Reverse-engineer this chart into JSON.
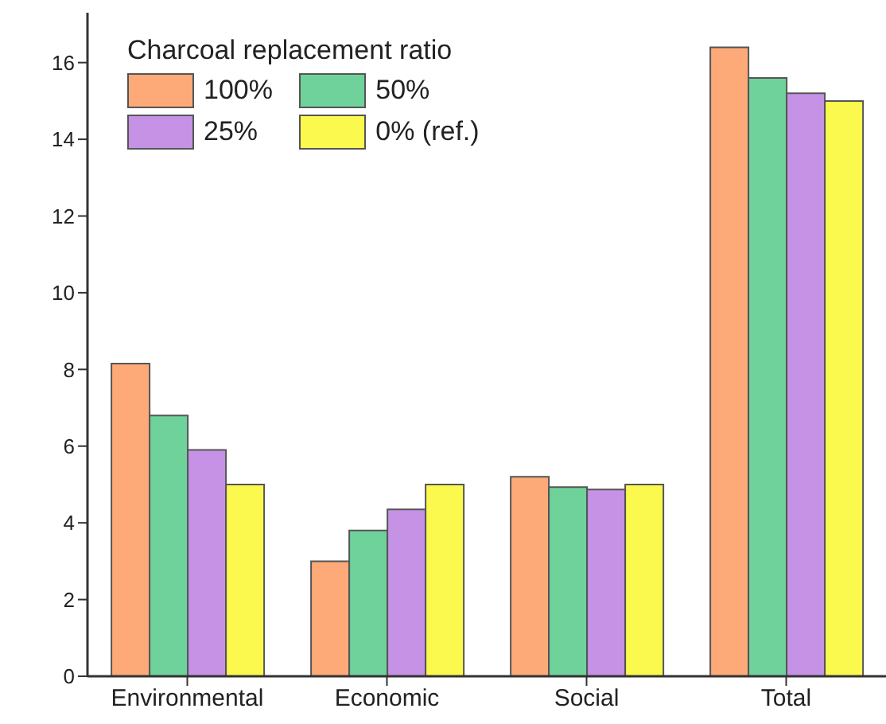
{
  "chart_data": {
    "type": "bar",
    "categories": [
      "Environmental",
      "Economic",
      "Social",
      "Total"
    ],
    "series": [
      {
        "name": "100%",
        "color": "#fdaa78",
        "values": [
          8.15,
          3.0,
          5.2,
          16.4
        ]
      },
      {
        "name": "50%",
        "color": "#6fd29a",
        "values": [
          6.8,
          3.8,
          4.93,
          15.6
        ]
      },
      {
        "name": "25%",
        "color": "#c592e6",
        "values": [
          5.9,
          4.35,
          4.87,
          15.2
        ]
      },
      {
        "name": "0% (ref.)",
        "color": "#fbf94d",
        "values": [
          5.0,
          5.0,
          5.0,
          15.0
        ]
      }
    ],
    "legend_title": "Charcoal replacement ratio",
    "legend": "top left",
    "ylim": [
      0,
      17.3
    ],
    "yticks": [
      0,
      2,
      4,
      6,
      8,
      10,
      12,
      14,
      16
    ]
  }
}
